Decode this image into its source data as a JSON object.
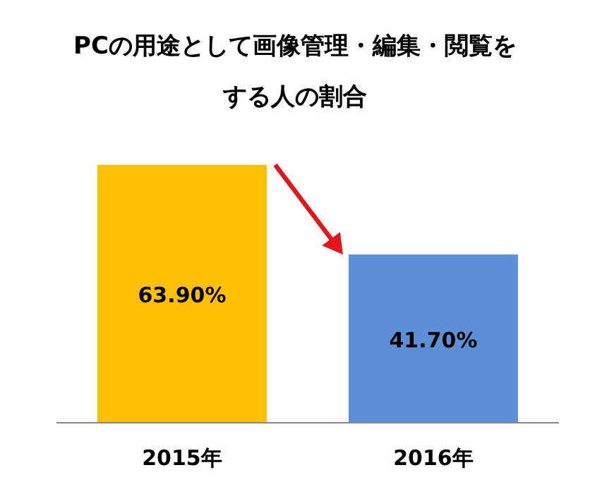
{
  "chart_data": {
    "type": "bar",
    "title": "PCの用途として画像管理・編集・閲覧をする人の割合",
    "categories": [
      "2015年",
      "2016年"
    ],
    "values": [
      63.9,
      41.7
    ],
    "colors": [
      "#ffc000",
      "#5b8fd6"
    ],
    "value_labels": [
      "63.90%",
      "41.70%"
    ]
  }
}
